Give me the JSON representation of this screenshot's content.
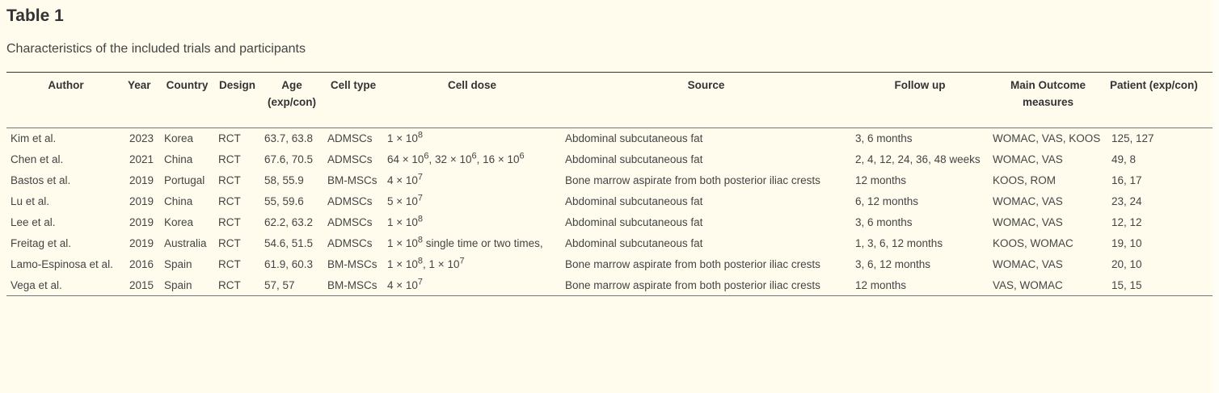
{
  "title": "Table 1",
  "caption": "Characteristics of the included trials and participants",
  "columns": [
    "Author",
    "Year",
    "Country",
    "Design",
    "Age (exp/con)",
    "Cell type",
    "Cell dose",
    "Source",
    "Follow up",
    "Main Outcome measures",
    "Patient (exp/con)"
  ],
  "rows": [
    {
      "author": "Kim et al.",
      "year": "2023",
      "country": "Korea",
      "design": "RCT",
      "age": "63.7, 63.8",
      "cell_type": "ADMSCs",
      "dose": [
        {
          "t": "1 × 10",
          "sup": "8"
        }
      ],
      "source": "Abdominal subcutaneous fat",
      "follow_up": "3, 6 months",
      "outcome": "WOMAC, VAS, KOOS",
      "patient": "125, 127"
    },
    {
      "author": "Chen et al.",
      "year": "2021",
      "country": "China",
      "design": "RCT",
      "age": "67.6, 70.5",
      "cell_type": "ADMSCs",
      "dose": [
        {
          "t": "64 × 10",
          "sup": "6"
        },
        {
          "t": ", 32 × 10",
          "sup": "6"
        },
        {
          "t": ", 16 × 10",
          "sup": "6"
        }
      ],
      "source": "Abdominal subcutaneous fat",
      "follow_up": "2, 4, 12, 24, 36, 48 weeks",
      "outcome": "WOMAC, VAS",
      "patient": "49, 8"
    },
    {
      "author": "Bastos et al.",
      "year": "2019",
      "country": "Portugal",
      "design": "RCT",
      "age": "58, 55.9",
      "cell_type": "BM-MSCs",
      "dose": [
        {
          "t": "4 × 10",
          "sup": "7"
        }
      ],
      "source": "Bone marrow aspirate from both posterior iliac crests",
      "follow_up": "12 months",
      "outcome": "KOOS, ROM",
      "patient": "16, 17"
    },
    {
      "author": "Lu et al.",
      "year": "2019",
      "country": "China",
      "design": "RCT",
      "age": "55, 59.6",
      "cell_type": "ADMSCs",
      "dose": [
        {
          "t": "5 × 10",
          "sup": "7"
        }
      ],
      "source": "Abdominal subcutaneous fat",
      "follow_up": "6, 12 months",
      "outcome": "WOMAC, VAS",
      "patient": "23, 24"
    },
    {
      "author": "Lee et al.",
      "year": "2019",
      "country": "Korea",
      "design": "RCT",
      "age": "62.2, 63.2",
      "cell_type": "ADMSCs",
      "dose": [
        {
          "t": "1 × 10",
          "sup": "8"
        }
      ],
      "source": "Abdominal subcutaneous fat",
      "follow_up": "3, 6 months",
      "outcome": "WOMAC, VAS",
      "patient": "12, 12"
    },
    {
      "author": "Freitag et al.",
      "year": "2019",
      "country": "Australia",
      "design": "RCT",
      "age": "54.6, 51.5",
      "cell_type": "ADMSCs",
      "dose": [
        {
          "t": "1 × 10",
          "sup": "8"
        },
        {
          "t": " single time or two times,",
          "sup": ""
        }
      ],
      "source": "Abdominal subcutaneous fat",
      "follow_up": "1, 3, 6, 12 months",
      "outcome": "KOOS, WOMAC",
      "patient": "19, 10"
    },
    {
      "author": "Lamo-Espinosa et al.",
      "year": "2016",
      "country": "Spain",
      "design": "RCT",
      "age": "61.9, 60.3",
      "cell_type": "BM-MSCs",
      "dose": [
        {
          "t": "1 × 10",
          "sup": "8"
        },
        {
          "t": ", 1 × 10",
          "sup": "7"
        }
      ],
      "source": "Bone marrow aspirate from both posterior iliac crests",
      "follow_up": "3, 6, 12 months",
      "outcome": "WOMAC, VAS",
      "patient": "20, 10"
    },
    {
      "author": "Vega et al.",
      "year": "2015",
      "country": "Spain",
      "design": "RCT",
      "age": "57, 57",
      "cell_type": "BM-MSCs",
      "dose": [
        {
          "t": "4 × 10",
          "sup": "7"
        }
      ],
      "source": "Bone marrow aspirate from both posterior iliac crests",
      "follow_up": "12 months",
      "outcome": "VAS, WOMAC",
      "patient": "15, 15"
    }
  ]
}
